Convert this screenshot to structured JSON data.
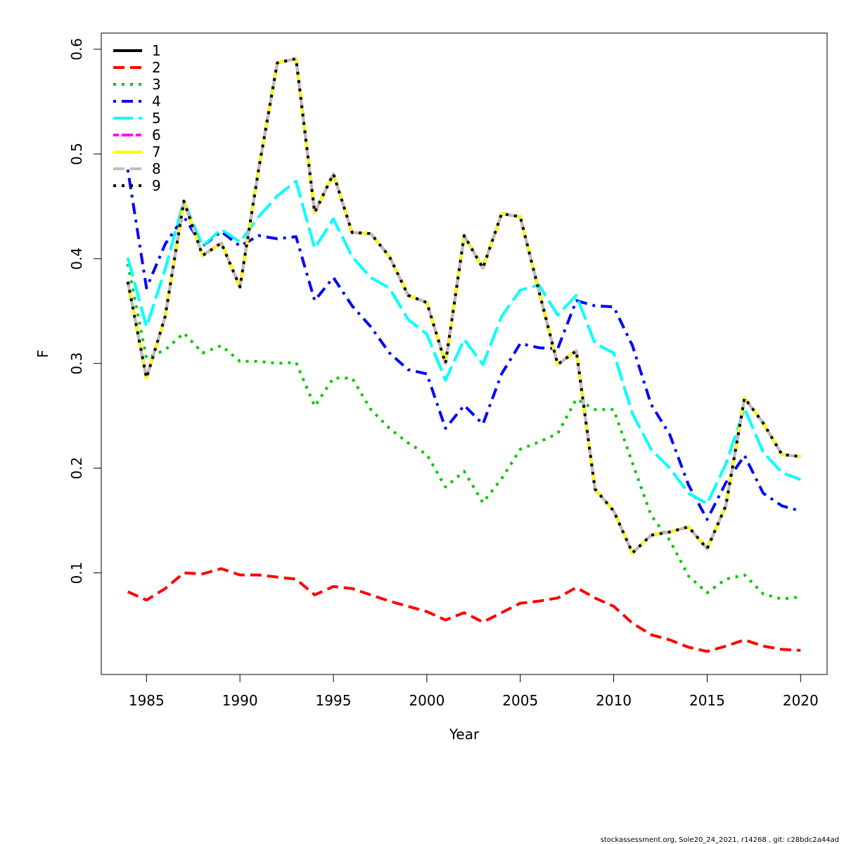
{
  "chart_data": {
    "type": "line",
    "title": "",
    "xlabel": "Year",
    "ylabel": "F",
    "xlim": [
      1983.5,
      2021.5
    ],
    "ylim": [
      0.0,
      0.6
    ],
    "x_ticks": [
      1985,
      1990,
      1995,
      2000,
      2005,
      2010,
      2015,
      2020
    ],
    "y_ticks": [
      0.1,
      0.2,
      0.3,
      0.4,
      0.5,
      0.6
    ],
    "y_tick_labels": [
      "0.1",
      "0.2",
      "0.3",
      "0.4",
      "0.5",
      "0.6"
    ],
    "legend_position": "top-left",
    "grid": false,
    "x": [
      1984,
      1985,
      1986,
      1987,
      1988,
      1989,
      1990,
      1991,
      1992,
      1993,
      1994,
      1995,
      1996,
      1997,
      1998,
      1999,
      2000,
      2001,
      2002,
      2003,
      2004,
      2005,
      2006,
      2007,
      2008,
      2009,
      2010,
      2011,
      2012,
      2013,
      2014,
      2015,
      2016,
      2017,
      2018,
      2019,
      2020
    ],
    "series": [
      {
        "name": "1",
        "color": "#000000",
        "dash": "solid",
        "values": [
          0.378,
          0.286,
          0.345,
          0.455,
          0.403,
          0.415,
          0.373,
          0.485,
          0.587,
          0.591,
          0.444,
          0.481,
          0.425,
          0.424,
          0.402,
          0.365,
          0.358,
          0.3,
          0.422,
          0.391,
          0.443,
          0.44,
          0.369,
          0.299,
          0.312,
          0.18,
          0.159,
          0.119,
          0.136,
          0.139,
          0.144,
          0.123,
          0.164,
          0.267,
          0.243,
          0.213,
          0.211
        ]
      },
      {
        "name": "2",
        "color": "#ff0000",
        "dash": "dashed",
        "values": [
          0.082,
          0.074,
          0.085,
          0.1,
          0.099,
          0.104,
          0.098,
          0.098,
          0.096,
          0.094,
          0.079,
          0.087,
          0.085,
          0.079,
          0.073,
          0.068,
          0.063,
          0.055,
          0.062,
          0.053,
          0.062,
          0.071,
          0.073,
          0.076,
          0.086,
          0.076,
          0.068,
          0.052,
          0.041,
          0.036,
          0.029,
          0.025,
          0.03,
          0.036,
          0.03,
          0.027,
          0.026
        ]
      },
      {
        "name": "3",
        "color": "#00cc00",
        "dash": "dotted",
        "values": [
          0.395,
          0.305,
          0.313,
          0.329,
          0.31,
          0.317,
          0.302,
          0.302,
          0.3,
          0.301,
          0.259,
          0.286,
          0.286,
          0.256,
          0.238,
          0.224,
          0.213,
          0.182,
          0.197,
          0.167,
          0.19,
          0.218,
          0.225,
          0.233,
          0.266,
          0.256,
          0.256,
          0.205,
          0.155,
          0.131,
          0.097,
          0.081,
          0.094,
          0.098,
          0.08,
          0.075,
          0.077
        ]
      },
      {
        "name": "4",
        "color": "#0000ff",
        "dash": "dotdash",
        "values": [
          0.485,
          0.372,
          0.414,
          0.44,
          0.412,
          0.426,
          0.412,
          0.422,
          0.419,
          0.421,
          0.36,
          0.382,
          0.355,
          0.335,
          0.31,
          0.294,
          0.29,
          0.238,
          0.26,
          0.242,
          0.29,
          0.319,
          0.315,
          0.314,
          0.36,
          0.355,
          0.354,
          0.317,
          0.261,
          0.232,
          0.184,
          0.151,
          0.186,
          0.212,
          0.176,
          0.164,
          0.159
        ]
      },
      {
        "name": "5",
        "color": "#00ffff",
        "dash": "longdash",
        "values": [
          0.401,
          0.335,
          0.39,
          0.455,
          0.412,
          0.428,
          0.416,
          0.44,
          0.46,
          0.474,
          0.41,
          0.438,
          0.402,
          0.382,
          0.372,
          0.342,
          0.328,
          0.284,
          0.323,
          0.299,
          0.345,
          0.37,
          0.375,
          0.346,
          0.365,
          0.319,
          0.31,
          0.252,
          0.218,
          0.2,
          0.176,
          0.166,
          0.204,
          0.257,
          0.215,
          0.196,
          0.189
        ]
      },
      {
        "name": "6",
        "color": "#ff00ff",
        "dash": "twodash",
        "values": [
          0.378,
          0.286,
          0.345,
          0.455,
          0.403,
          0.415,
          0.373,
          0.485,
          0.587,
          0.591,
          0.444,
          0.481,
          0.425,
          0.424,
          0.402,
          0.365,
          0.358,
          0.3,
          0.422,
          0.391,
          0.443,
          0.44,
          0.369,
          0.299,
          0.312,
          0.18,
          0.159,
          0.119,
          0.136,
          0.139,
          0.144,
          0.123,
          0.164,
          0.267,
          0.243,
          0.213,
          0.211
        ]
      },
      {
        "name": "7",
        "color": "#ffff00",
        "dash": "solid",
        "values": [
          0.378,
          0.286,
          0.345,
          0.455,
          0.403,
          0.415,
          0.373,
          0.485,
          0.587,
          0.591,
          0.444,
          0.481,
          0.425,
          0.424,
          0.402,
          0.365,
          0.358,
          0.3,
          0.422,
          0.391,
          0.443,
          0.44,
          0.369,
          0.299,
          0.312,
          0.18,
          0.159,
          0.119,
          0.136,
          0.139,
          0.144,
          0.123,
          0.164,
          0.267,
          0.243,
          0.213,
          0.211
        ]
      },
      {
        "name": "8",
        "color": "#bebebe",
        "dash": "dashed",
        "values": [
          0.378,
          0.286,
          0.345,
          0.455,
          0.403,
          0.415,
          0.373,
          0.485,
          0.587,
          0.591,
          0.444,
          0.481,
          0.425,
          0.424,
          0.402,
          0.365,
          0.358,
          0.3,
          0.422,
          0.391,
          0.443,
          0.44,
          0.369,
          0.299,
          0.312,
          0.18,
          0.159,
          0.119,
          0.136,
          0.139,
          0.144,
          0.123,
          0.164,
          0.267,
          0.243,
          0.213,
          0.211
        ]
      },
      {
        "name": "9",
        "color": "#000000",
        "dash": "dotted",
        "values": [
          0.378,
          0.286,
          0.345,
          0.455,
          0.403,
          0.415,
          0.373,
          0.485,
          0.587,
          0.591,
          0.444,
          0.481,
          0.425,
          0.424,
          0.402,
          0.365,
          0.358,
          0.3,
          0.422,
          0.391,
          0.443,
          0.44,
          0.369,
          0.299,
          0.312,
          0.18,
          0.159,
          0.119,
          0.136,
          0.139,
          0.144,
          0.123,
          0.164,
          0.267,
          0.243,
          0.213,
          0.211
        ]
      }
    ]
  },
  "footer_text": "stockassessment.org, Sole20_24_2021, r14268 , git: c28bdc2a44ad"
}
